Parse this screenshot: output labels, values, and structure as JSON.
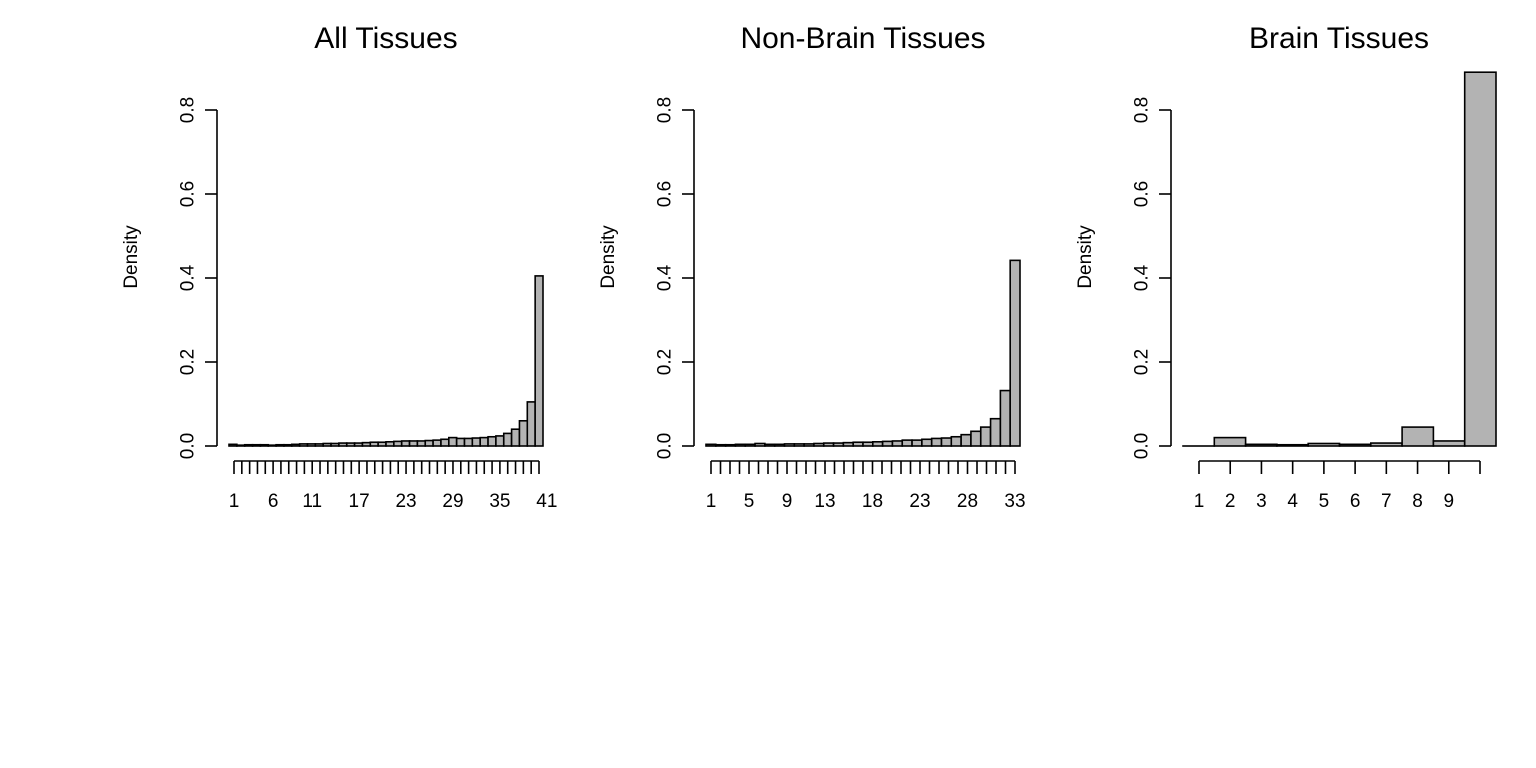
{
  "chart_data": [
    {
      "type": "bar",
      "title": "All Tissues",
      "xlabel": "",
      "ylabel": "Density",
      "ylim": [
        0,
        0.8
      ],
      "yticks": [
        "0.0",
        "0.2",
        "0.4",
        "0.6",
        "0.8"
      ],
      "x_tick_labels": [
        "1",
        "6",
        "11",
        "17",
        "23",
        "29",
        "35",
        "41"
      ],
      "bar_color": "#b3b3b3",
      "values": [
        0.004,
        0.002,
        0.003,
        0.003,
        0.003,
        0.002,
        0.003,
        0.003,
        0.004,
        0.005,
        0.005,
        0.005,
        0.006,
        0.006,
        0.007,
        0.007,
        0.007,
        0.008,
        0.009,
        0.009,
        0.01,
        0.011,
        0.012,
        0.012,
        0.012,
        0.013,
        0.014,
        0.016,
        0.02,
        0.018,
        0.018,
        0.019,
        0.02,
        0.022,
        0.024,
        0.03,
        0.04,
        0.06,
        0.105,
        0.405
      ]
    },
    {
      "type": "bar",
      "title": "Non-Brain Tissues",
      "xlabel": "",
      "ylabel": "Density",
      "ylim": [
        0,
        0.8
      ],
      "yticks": [
        "0.0",
        "0.2",
        "0.4",
        "0.6",
        "0.8"
      ],
      "x_tick_labels": [
        "1",
        "5",
        "9",
        "13",
        "18",
        "23",
        "28",
        "33"
      ],
      "bar_color": "#b3b3b3",
      "values": [
        0.004,
        0.003,
        0.003,
        0.004,
        0.004,
        0.006,
        0.004,
        0.004,
        0.005,
        0.005,
        0.005,
        0.006,
        0.007,
        0.007,
        0.008,
        0.009,
        0.009,
        0.01,
        0.011,
        0.012,
        0.014,
        0.014,
        0.016,
        0.018,
        0.019,
        0.022,
        0.027,
        0.035,
        0.045,
        0.065,
        0.132,
        0.442
      ]
    },
    {
      "type": "bar",
      "title": "Brain Tissues",
      "xlabel": "",
      "ylabel": "Density",
      "ylim": [
        0,
        0.8
      ],
      "yticks": [
        "0.0",
        "0.2",
        "0.4",
        "0.6",
        "0.8"
      ],
      "x_tick_labels": [
        "1",
        "2",
        "3",
        "4",
        "5",
        "6",
        "7",
        "8",
        "9"
      ],
      "bar_color": "#b3b3b3",
      "values": [
        0.0,
        0.02,
        0.004,
        0.003,
        0.006,
        0.004,
        0.007,
        0.045,
        0.012,
        0.89
      ]
    }
  ]
}
